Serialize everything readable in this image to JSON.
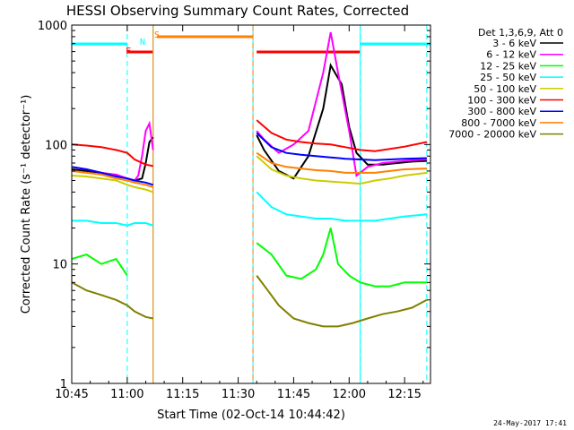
{
  "chart_data": {
    "type": "line",
    "title": "HESSI Observing Summary Count Rates, Corrected",
    "xlabel": "Start Time (02-Oct-14 10:44:42)",
    "ylabel": "Corrected Count Rate (s⁻¹ detector⁻¹)",
    "yscale": "log",
    "ylim": [
      1,
      1000
    ],
    "xlim_minutes_after_1045": [
      0,
      97
    ],
    "x_tick_labels": [
      "10:45",
      "11:00",
      "11:15",
      "11:30",
      "11:45",
      "12:00",
      "12:15"
    ],
    "x_tick_minutes": [
      0,
      15,
      30,
      45,
      60,
      75,
      90
    ],
    "y_tick_labels": [
      "1",
      "10",
      "100",
      "1000"
    ],
    "y_tick_values": [
      1,
      10,
      100,
      1000
    ],
    "legend_title": "Det 1,3,6,9, Att 0",
    "legend_position": "right",
    "series": [
      {
        "name": "3 - 6 keV",
        "color": "#000000",
        "x": [
          0,
          4,
          8,
          12,
          15,
          17,
          19,
          20,
          21,
          22,
          50,
          52,
          56,
          60,
          64,
          68,
          70,
          73,
          75,
          77,
          80,
          84,
          88,
          92,
          96
        ],
        "y": [
          62,
          60,
          58,
          55,
          52,
          50,
          52,
          70,
          105,
          115,
          120,
          90,
          60,
          52,
          80,
          200,
          460,
          320,
          140,
          85,
          68,
          68,
          70,
          72,
          73
        ]
      },
      {
        "name": "6 - 12 keV",
        "color": "#ff00ff",
        "x": [
          0,
          4,
          8,
          12,
          15,
          17,
          18,
          19,
          20,
          21,
          22,
          50,
          52,
          56,
          60,
          64,
          68,
          70,
          72,
          75,
          77,
          80,
          84,
          88,
          92,
          96
        ],
        "y": [
          65,
          62,
          58,
          56,
          52,
          50,
          55,
          80,
          130,
          150,
          90,
          130,
          110,
          85,
          100,
          130,
          400,
          870,
          400,
          130,
          55,
          65,
          70,
          72,
          74,
          75
        ]
      },
      {
        "name": "12 - 25 keV",
        "color": "#00ff00",
        "x": [
          0,
          4,
          8,
          12,
          15,
          50,
          54,
          58,
          62,
          66,
          68,
          70,
          72,
          75,
          78,
          82,
          86,
          90,
          96
        ],
        "y": [
          11,
          12,
          10,
          11,
          8,
          15,
          12,
          8,
          7.5,
          9,
          12,
          20,
          10,
          8,
          7,
          6.5,
          6.5,
          7,
          7
        ]
      },
      {
        "name": "25 - 50 keV",
        "color": "#00ffff",
        "x": [
          0,
          4,
          8,
          12,
          15,
          17,
          20,
          22,
          50,
          54,
          58,
          62,
          66,
          70,
          74,
          78,
          82,
          86,
          90,
          96
        ],
        "y": [
          23,
          23,
          22,
          22,
          21,
          22,
          22,
          21,
          40,
          30,
          26,
          25,
          24,
          24,
          23,
          23,
          23,
          24,
          25,
          26
        ]
      },
      {
        "name": "50 - 100 keV",
        "color": "#cccc00",
        "x": [
          0,
          4,
          8,
          12,
          15,
          17,
          20,
          22,
          50,
          54,
          58,
          62,
          66,
          70,
          74,
          78,
          82,
          86,
          90,
          96
        ],
        "y": [
          55,
          54,
          52,
          50,
          46,
          44,
          42,
          40,
          80,
          62,
          55,
          52,
          50,
          49,
          48,
          47,
          50,
          52,
          55,
          58
        ]
      },
      {
        "name": "100 - 300 keV",
        "color": "#ff0000",
        "x": [
          0,
          4,
          8,
          12,
          15,
          17,
          20,
          22,
          50,
          54,
          58,
          62,
          66,
          70,
          74,
          78,
          82,
          86,
          90,
          96
        ],
        "y": [
          100,
          98,
          95,
          90,
          85,
          75,
          68,
          66,
          160,
          125,
          110,
          105,
          102,
          100,
          95,
          90,
          88,
          92,
          96,
          105
        ]
      },
      {
        "name": "300 - 800 keV",
        "color": "#0000ff",
        "x": [
          0,
          4,
          8,
          12,
          15,
          17,
          20,
          22,
          50,
          54,
          58,
          62,
          66,
          70,
          74,
          78,
          82,
          86,
          90,
          96
        ],
        "y": [
          65,
          62,
          58,
          54,
          52,
          50,
          48,
          46,
          125,
          95,
          85,
          82,
          80,
          78,
          76,
          75,
          74,
          75,
          76,
          77
        ]
      },
      {
        "name": "800 - 7000 keV",
        "color": "#ff8000",
        "x": [
          0,
          4,
          8,
          12,
          15,
          17,
          20,
          22,
          50,
          54,
          58,
          62,
          66,
          70,
          74,
          78,
          82,
          86,
          90,
          96
        ],
        "y": [
          60,
          58,
          56,
          52,
          50,
          48,
          46,
          44,
          85,
          70,
          65,
          63,
          61,
          60,
          58,
          58,
          58,
          60,
          62,
          63
        ]
      },
      {
        "name": "7000 - 20000 keV",
        "color": "#808000",
        "x": [
          0,
          4,
          8,
          12,
          15,
          17,
          20,
          22,
          50,
          53,
          56,
          60,
          64,
          68,
          72,
          76,
          80,
          84,
          88,
          92,
          96
        ],
        "y": [
          7,
          6,
          5.5,
          5,
          4.5,
          4,
          3.6,
          3.5,
          8,
          6,
          4.5,
          3.5,
          3.2,
          3,
          3,
          3.2,
          3.5,
          3.8,
          4,
          4.3,
          5
        ]
      }
    ],
    "annotations": [
      {
        "label": "F",
        "color": "#ff0000"
      },
      {
        "label": "N",
        "color": "#00ffff"
      },
      {
        "label": "S",
        "color": "#ff8000"
      }
    ],
    "state_bars": [
      {
        "name": "night",
        "color": "#00ffff",
        "x": [
          [
            0,
            15
          ],
          [
            78,
            97
          ]
        ]
      },
      {
        "name": "flare",
        "color": "#ff0000",
        "x": [
          [
            15,
            22
          ],
          [
            50,
            78
          ]
        ]
      },
      {
        "name": "saa",
        "color": "#ff8000",
        "x": [
          [
            23,
            49
          ]
        ]
      }
    ],
    "vertical_lines": [
      {
        "color": "#00ffff",
        "dashed": true,
        "x": [
          15,
          78,
          96
        ]
      },
      {
        "color": "#00ffff",
        "dashed": false,
        "x": [
          0,
          22,
          49,
          78
        ]
      },
      {
        "color": "#ff8000",
        "dashed": false,
        "x": [
          22
        ]
      },
      {
        "color": "#ff8000",
        "dashed": true,
        "x": [
          49
        ]
      }
    ],
    "date_stamp": "24-May-2017 17:41"
  }
}
